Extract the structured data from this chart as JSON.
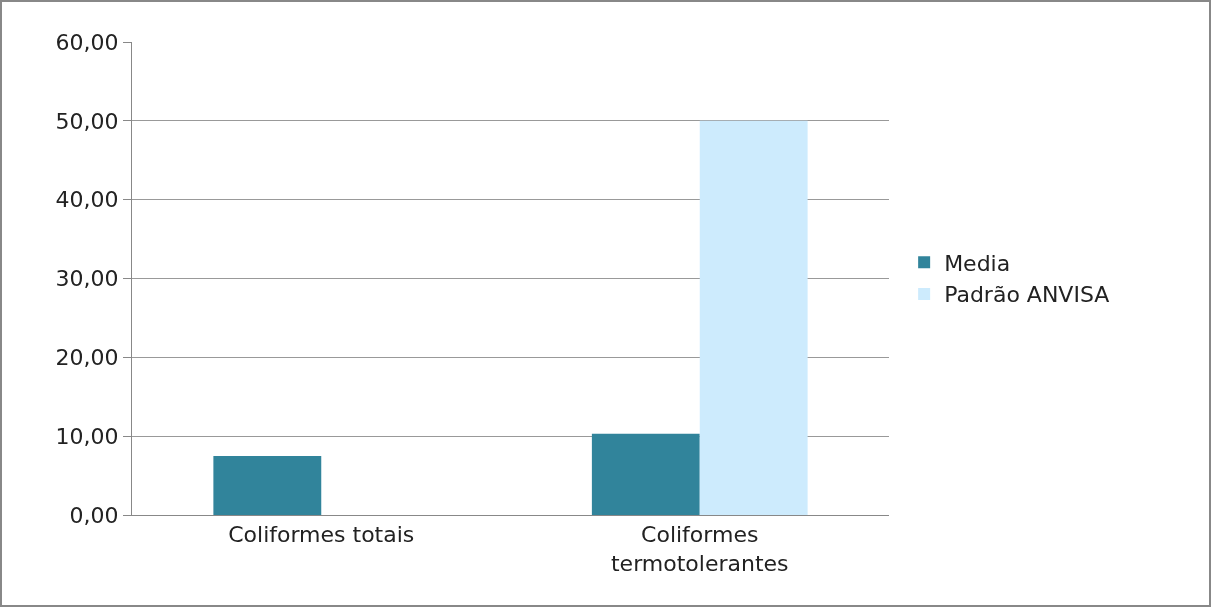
{
  "chart_data": {
    "type": "bar",
    "categories": [
      "Coliformes totais",
      "Coliformes termotolerantes"
    ],
    "series": [
      {
        "name": "Media",
        "color": "#31849b",
        "values": [
          7.5,
          10.3
        ]
      },
      {
        "name": "Padrão ANVISA",
        "color": "#cdebfd",
        "values": [
          null,
          50
        ]
      }
    ],
    "ylim": [
      0,
      60
    ],
    "yticks": [
      {
        "value": 0,
        "label": "0,00"
      },
      {
        "value": 10,
        "label": "10,00"
      },
      {
        "value": 20,
        "label": "20,00"
      },
      {
        "value": 30,
        "label": "30,00"
      },
      {
        "value": 40,
        "label": "40,00"
      },
      {
        "value": 50,
        "label": "50,00"
      },
      {
        "value": 60,
        "label": "60,00"
      }
    ],
    "grid": "y",
    "legend": "right"
  }
}
